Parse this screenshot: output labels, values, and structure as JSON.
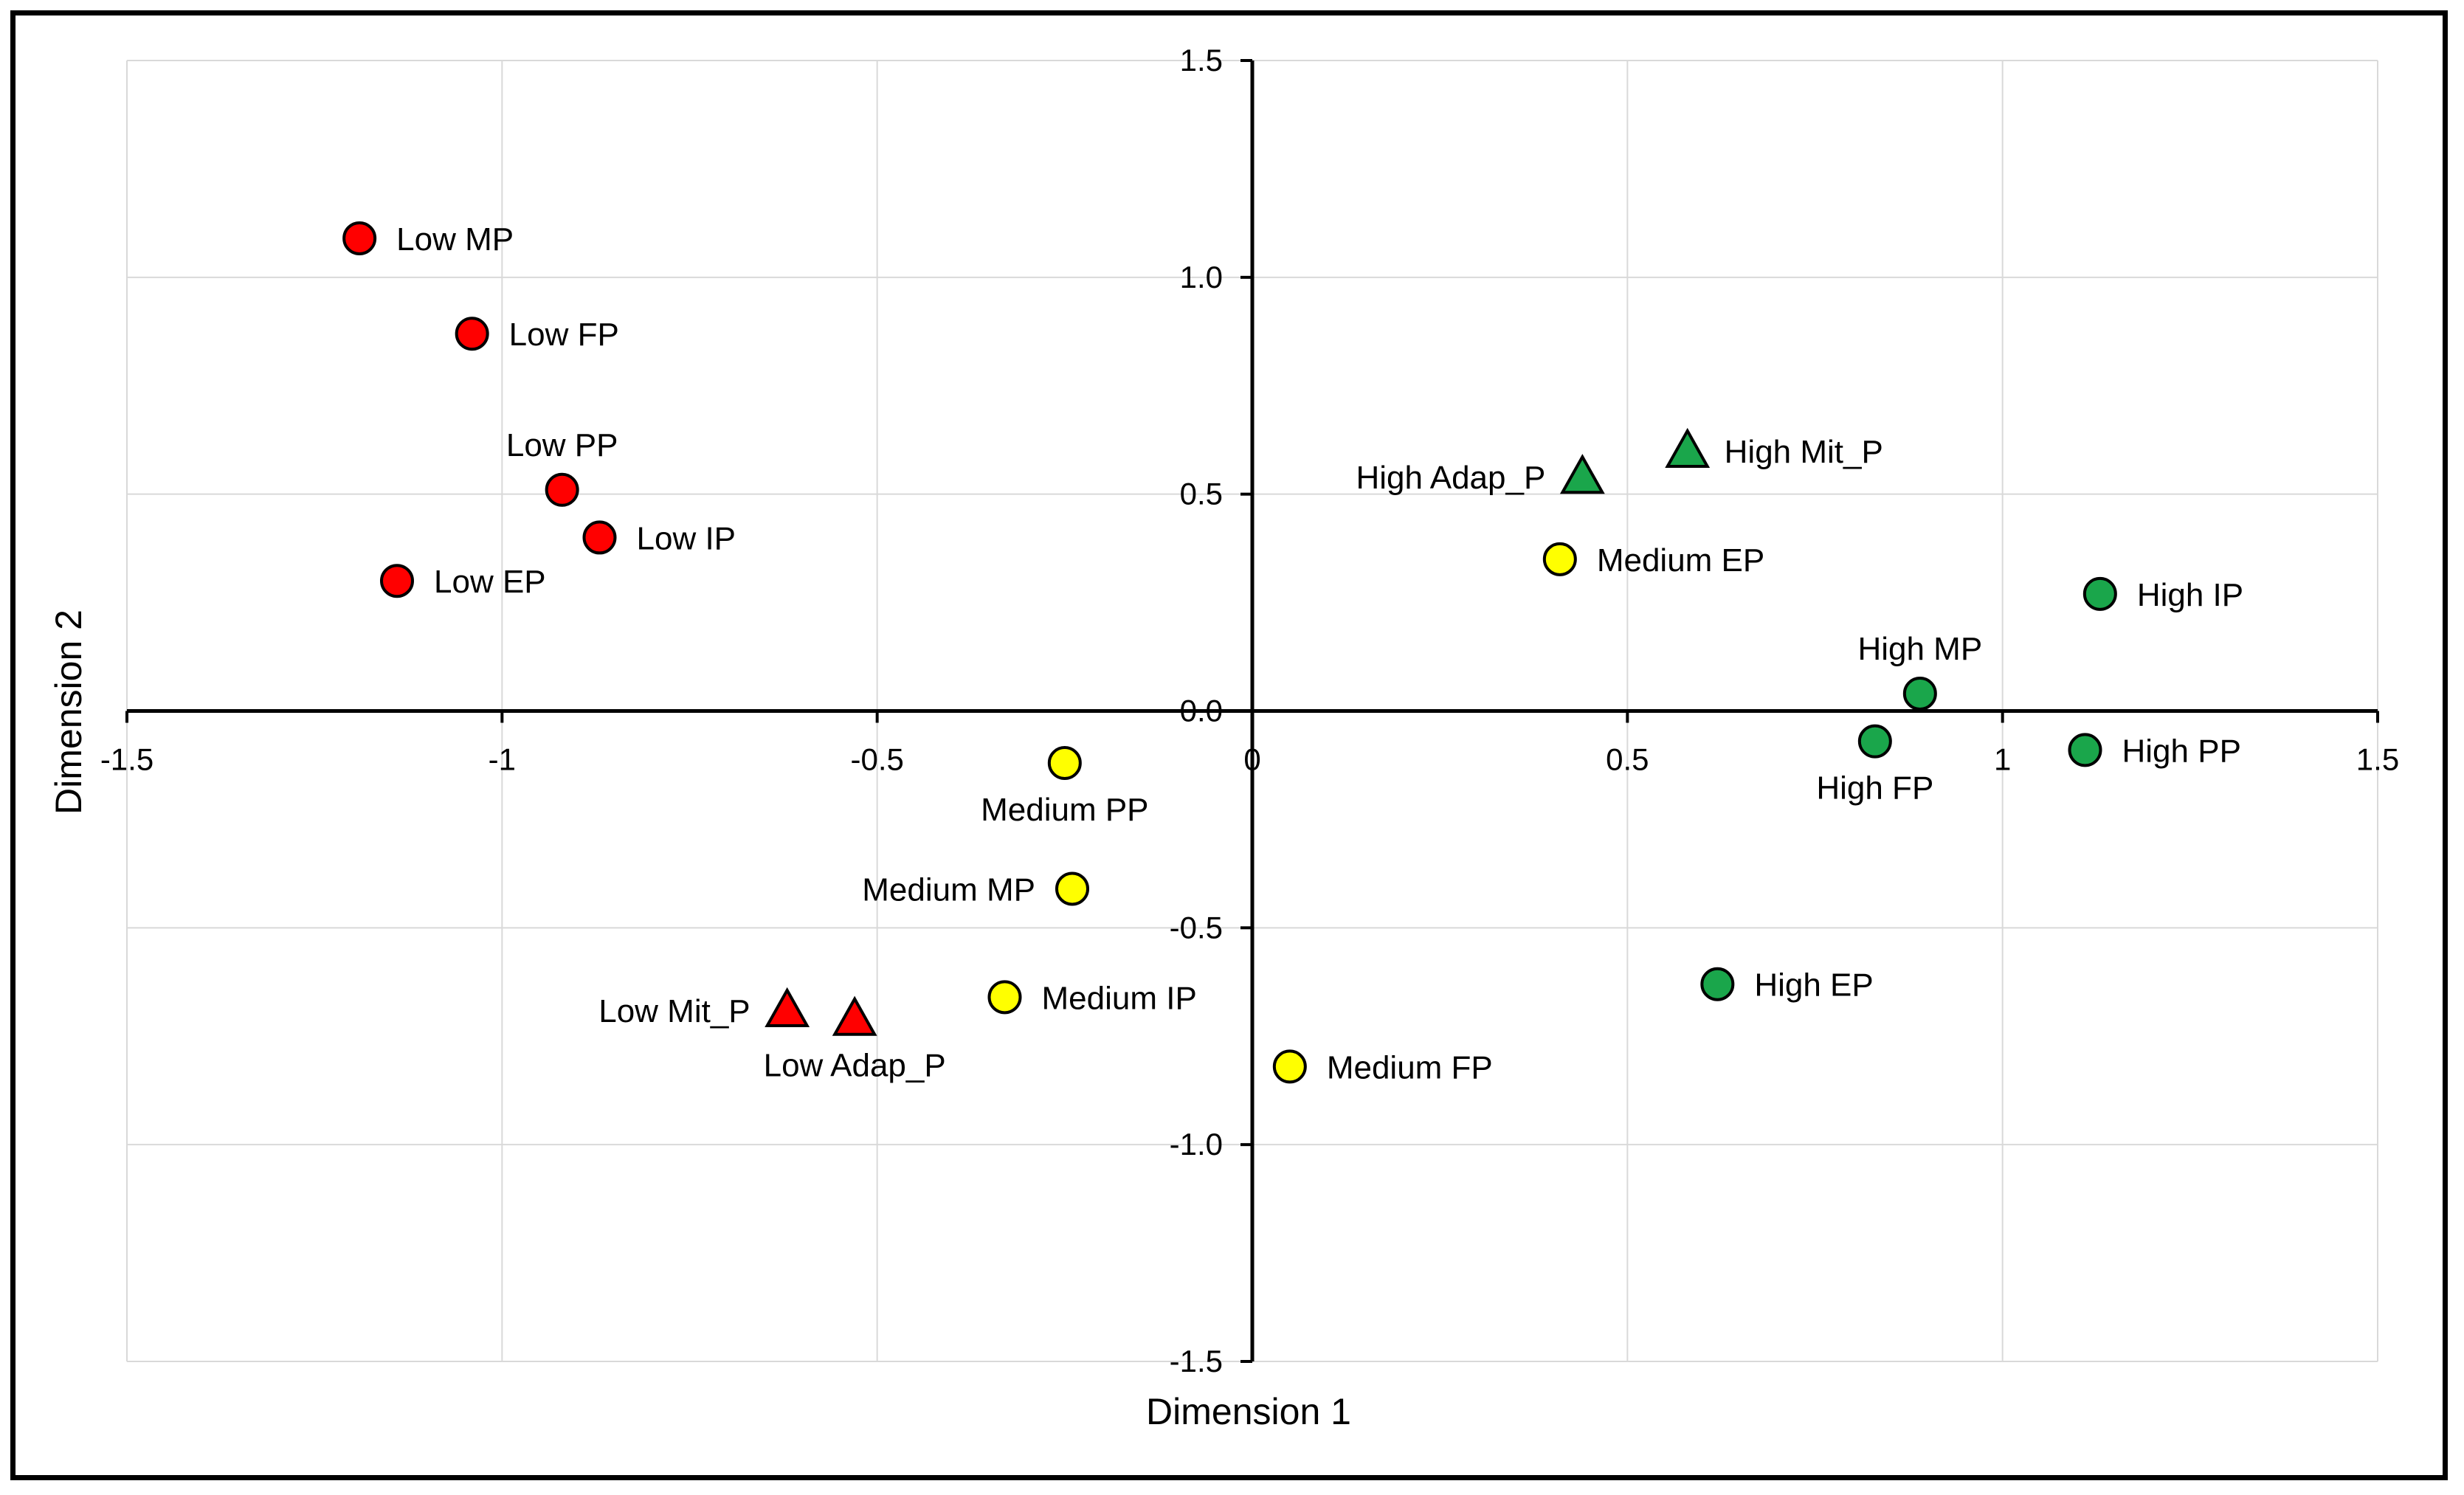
{
  "chart_data": {
    "type": "scatter",
    "title": "",
    "xlabel": "Dimension 1",
    "ylabel": "Dimension 2",
    "xlim": [
      -1.5,
      1.5
    ],
    "ylim": [
      -1.5,
      1.5
    ],
    "x_ticks": [
      -1.5,
      -1,
      -0.5,
      0,
      0.5,
      1,
      1.5
    ],
    "x_tick_labels": [
      "-1.5",
      "-1",
      "-0.5",
      "0",
      "0.5",
      "1",
      "1.5"
    ],
    "y_ticks": [
      -1.5,
      -1.0,
      -0.5,
      0.0,
      0.5,
      1.0,
      1.5
    ],
    "y_tick_labels": [
      "-1.5",
      "-1.0",
      "-0.5",
      "0.0",
      "0.5",
      "1.0",
      "1.5"
    ],
    "grid": true,
    "colors": {
      "low": "#ff0000",
      "medium": "#ffff00",
      "high": "#1aa64b",
      "outline": "#000000",
      "grid": "#d9d9d9"
    },
    "points": [
      {
        "label": "Low MP",
        "x": -1.19,
        "y": 1.09,
        "group": "low",
        "shape": "circle",
        "label_pos": "right"
      },
      {
        "label": "Low FP",
        "x": -1.04,
        "y": 0.87,
        "group": "low",
        "shape": "circle",
        "label_pos": "right"
      },
      {
        "label": "Low PP",
        "x": -0.92,
        "y": 0.51,
        "group": "low",
        "shape": "circle",
        "label_pos": "above"
      },
      {
        "label": "Low IP",
        "x": -0.87,
        "y": 0.4,
        "group": "low",
        "shape": "circle",
        "label_pos": "right"
      },
      {
        "label": "Low EP",
        "x": -1.14,
        "y": 0.3,
        "group": "low",
        "shape": "circle",
        "label_pos": "right"
      },
      {
        "label": "Low Mit_P",
        "x": -0.62,
        "y": -0.69,
        "group": "low",
        "shape": "triangle",
        "label_pos": "left"
      },
      {
        "label": "Low Adap_P",
        "x": -0.53,
        "y": -0.71,
        "group": "low",
        "shape": "triangle",
        "label_pos": "below"
      },
      {
        "label": "Medium PP",
        "x": -0.25,
        "y": -0.12,
        "group": "medium",
        "shape": "circle",
        "label_pos": "below"
      },
      {
        "label": "Medium MP",
        "x": -0.24,
        "y": -0.41,
        "group": "medium",
        "shape": "circle",
        "label_pos": "left"
      },
      {
        "label": "Medium IP",
        "x": -0.33,
        "y": -0.66,
        "group": "medium",
        "shape": "circle",
        "label_pos": "right"
      },
      {
        "label": "Medium FP",
        "x": 0.05,
        "y": -0.82,
        "group": "medium",
        "shape": "circle",
        "label_pos": "right"
      },
      {
        "label": "Medium EP",
        "x": 0.41,
        "y": 0.35,
        "group": "medium",
        "shape": "circle",
        "label_pos": "right"
      },
      {
        "label": "High Adap_P",
        "x": 0.44,
        "y": 0.54,
        "group": "high",
        "shape": "triangle",
        "label_pos": "left"
      },
      {
        "label": "High Mit_P",
        "x": 0.58,
        "y": 0.6,
        "group": "high",
        "shape": "triangle",
        "label_pos": "right"
      },
      {
        "label": "High IP",
        "x": 1.13,
        "y": 0.27,
        "group": "high",
        "shape": "circle",
        "label_pos": "right"
      },
      {
        "label": "High MP",
        "x": 0.89,
        "y": 0.04,
        "group": "high",
        "shape": "circle",
        "label_pos": "above"
      },
      {
        "label": "High FP",
        "x": 0.83,
        "y": -0.07,
        "group": "high",
        "shape": "circle",
        "label_pos": "below"
      },
      {
        "label": "High PP",
        "x": 1.11,
        "y": -0.09,
        "group": "high",
        "shape": "circle",
        "label_pos": "right"
      },
      {
        "label": "High EP",
        "x": 0.62,
        "y": -0.63,
        "group": "high",
        "shape": "circle",
        "label_pos": "right"
      }
    ]
  }
}
